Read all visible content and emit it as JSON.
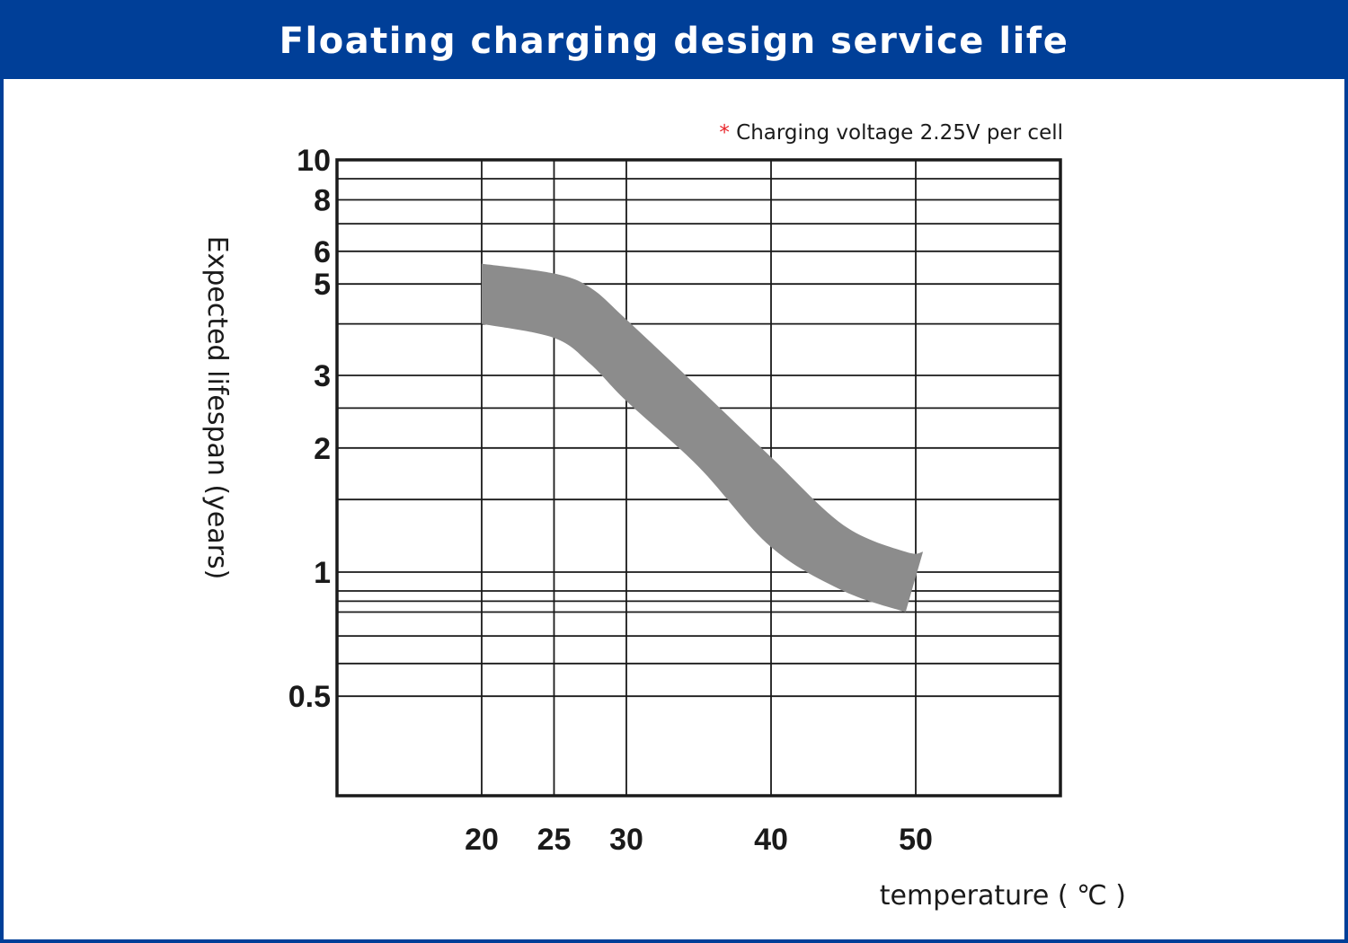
{
  "header": {
    "title": "Floating charging design service life"
  },
  "chart_data": {
    "type": "area",
    "title": "Floating charging design service life",
    "subtitle_mark": "*",
    "subtitle": " Charging voltage 2.25V per cell",
    "xlabel": "temperature ( ℃ )",
    "ylabel": "Expected lifespan (years)",
    "x_ticks": [
      20,
      25,
      30,
      40,
      50
    ],
    "x_tick_labels": [
      "20",
      "25",
      "30",
      "40",
      "50"
    ],
    "xlim": [
      10,
      60
    ],
    "y_scale": "log",
    "ylim": [
      0.4,
      10
    ],
    "y_ticks": [
      0.5,
      1,
      2,
      3,
      5,
      6,
      8,
      10
    ],
    "y_tick_labels": [
      "0.5",
      "1",
      "2",
      "3",
      "5",
      "6",
      "8",
      "10"
    ],
    "y_gridlines": [
      0.5,
      0.6,
      0.7,
      0.8,
      0.85,
      0.9,
      1,
      1.5,
      2,
      2.5,
      3,
      4,
      5,
      6,
      7,
      8,
      9,
      10
    ],
    "grid": true,
    "band": {
      "x": [
        20,
        25,
        27.5,
        30,
        35,
        40,
        45,
        49.3
      ],
      "y_upper": [
        5.6,
        5.3,
        4.9,
        4.1,
        2.8,
        1.9,
        1.3,
        1.12
      ],
      "y_lower": [
        4.0,
        3.7,
        3.2,
        2.6,
        1.8,
        1.15,
        0.9,
        0.8
      ],
      "end_upper": [
        50.5,
        1.12
      ],
      "end_lower": [
        49.3,
        0.8
      ]
    },
    "colors": {
      "band": "#8c8c8c",
      "grid": "#1a1a1a",
      "accent": "#e8242a",
      "header": "#003f98"
    }
  }
}
